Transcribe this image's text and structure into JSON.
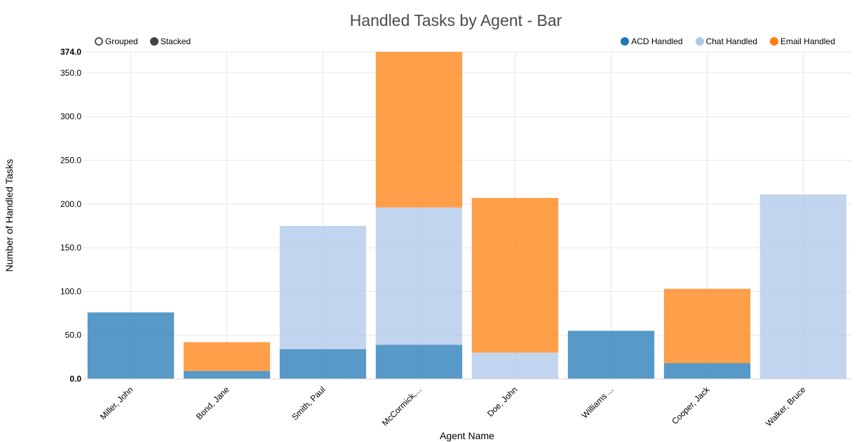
{
  "title": "Handled Tasks by Agent - Bar",
  "controls": {
    "grouped_label": "Grouped",
    "stacked_label": "Stacked",
    "selected": "Stacked"
  },
  "legend_placement": "top-right",
  "chart_data": {
    "type": "bar",
    "stacked": true,
    "title": "Handled Tasks by Agent - Bar",
    "xlabel": "Agent Name",
    "ylabel": "Number of Handled Tasks",
    "categories": [
      "Miller, John",
      "Bond, Jane",
      "Smith, Paul",
      "McCormick,...",
      "Doe, John",
      "Williams ...",
      "Cooper, Jack",
      "Walker, Bruce"
    ],
    "series": [
      {
        "name": "ACD Handled",
        "color": "#1f77b4",
        "values": [
          76,
          9,
          34,
          39,
          0,
          55,
          18,
          0
        ]
      },
      {
        "name": "Chat Handled",
        "color": "#aec7e8",
        "values": [
          0,
          0,
          141,
          157,
          30,
          0,
          0,
          211
        ]
      },
      {
        "name": "Email Handled",
        "color": "#ff7f0e",
        "values": [
          0,
          33,
          0,
          178,
          177,
          0,
          85,
          0
        ]
      }
    ],
    "ylim": [
      0,
      374
    ],
    "yticks": [
      "0.0",
      "50.0",
      "100.0",
      "150.0",
      "200.0",
      "250.0",
      "300.0",
      "350.0",
      "374.0"
    ],
    "grid": true
  }
}
